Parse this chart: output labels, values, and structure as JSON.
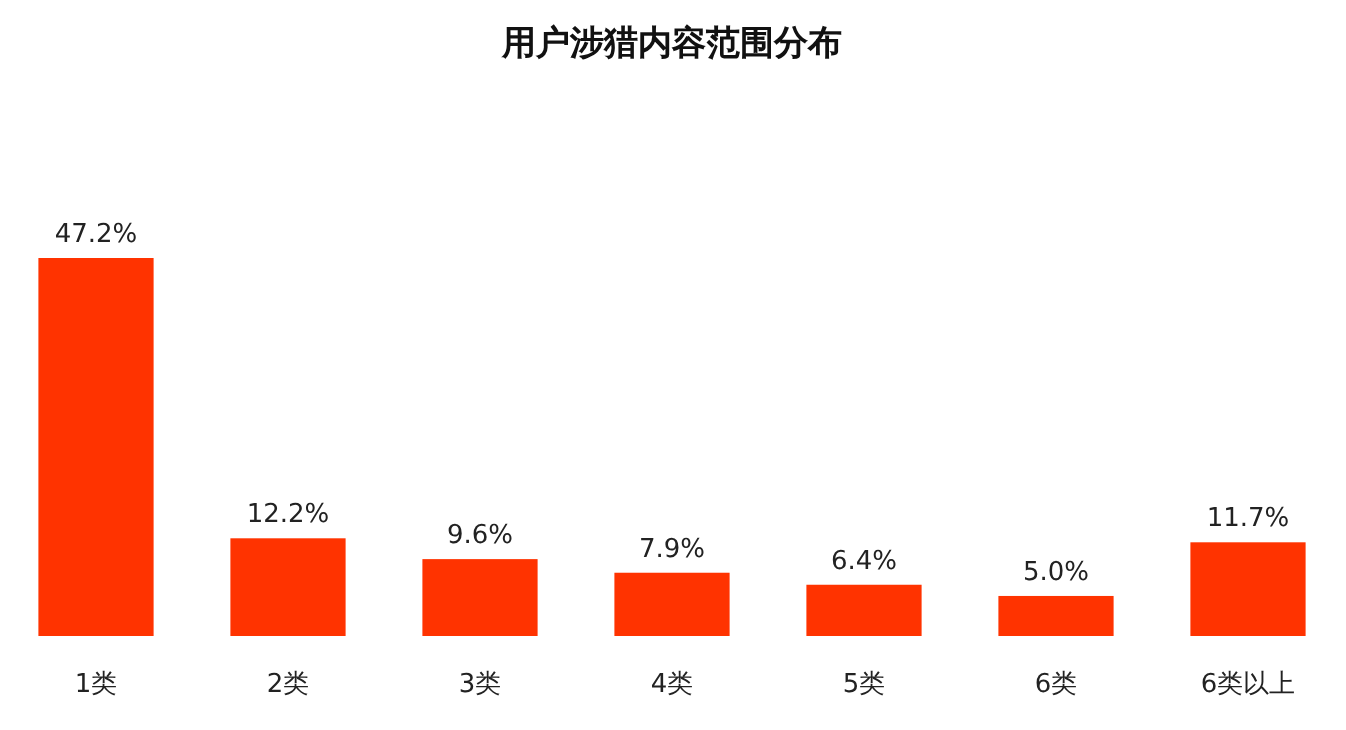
{
  "chart_data": {
    "type": "bar",
    "title": "用户涉猎内容范围分布",
    "categories": [
      "1类",
      "2类",
      "3类",
      "4类",
      "5类",
      "6类",
      "6类以上"
    ],
    "values": [
      47.2,
      12.2,
      9.6,
      7.9,
      6.4,
      5.0,
      11.7
    ],
    "value_labels": [
      "47.2%",
      "12.2%",
      "9.6%",
      "7.9%",
      "6.4%",
      "5.0%",
      "11.7%"
    ],
    "color": "#ff3300"
  }
}
